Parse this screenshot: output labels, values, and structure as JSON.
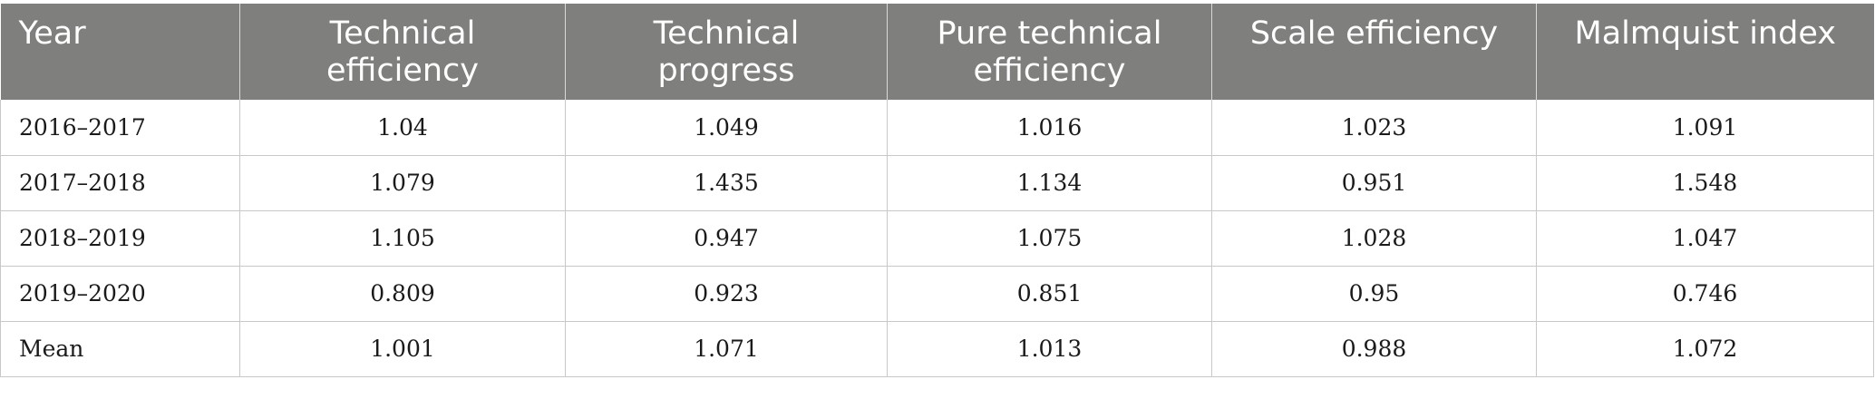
{
  "table": {
    "headers": [
      [
        "Year"
      ],
      [
        "Technical",
        "efficiency"
      ],
      [
        "Technical",
        "progress"
      ],
      [
        "Pure technical",
        "efficiency"
      ],
      [
        "Scale efficiency"
      ],
      [
        "Malmquist index"
      ]
    ],
    "rows": [
      [
        "2016–2017",
        "1.04",
        "1.049",
        "1.016",
        "1.023",
        "1.091"
      ],
      [
        "2017–2018",
        "1.079",
        "1.435",
        "1.134",
        "0.951",
        "1.548"
      ],
      [
        "2018–2019",
        "1.105",
        "0.947",
        "1.075",
        "1.028",
        "1.047"
      ],
      [
        "2019–2020",
        "0.809",
        "0.923",
        "0.851",
        "0.95",
        "0.746"
      ],
      [
        "Mean",
        "1.001",
        "1.071",
        "1.013",
        "0.988",
        "1.072"
      ]
    ]
  }
}
